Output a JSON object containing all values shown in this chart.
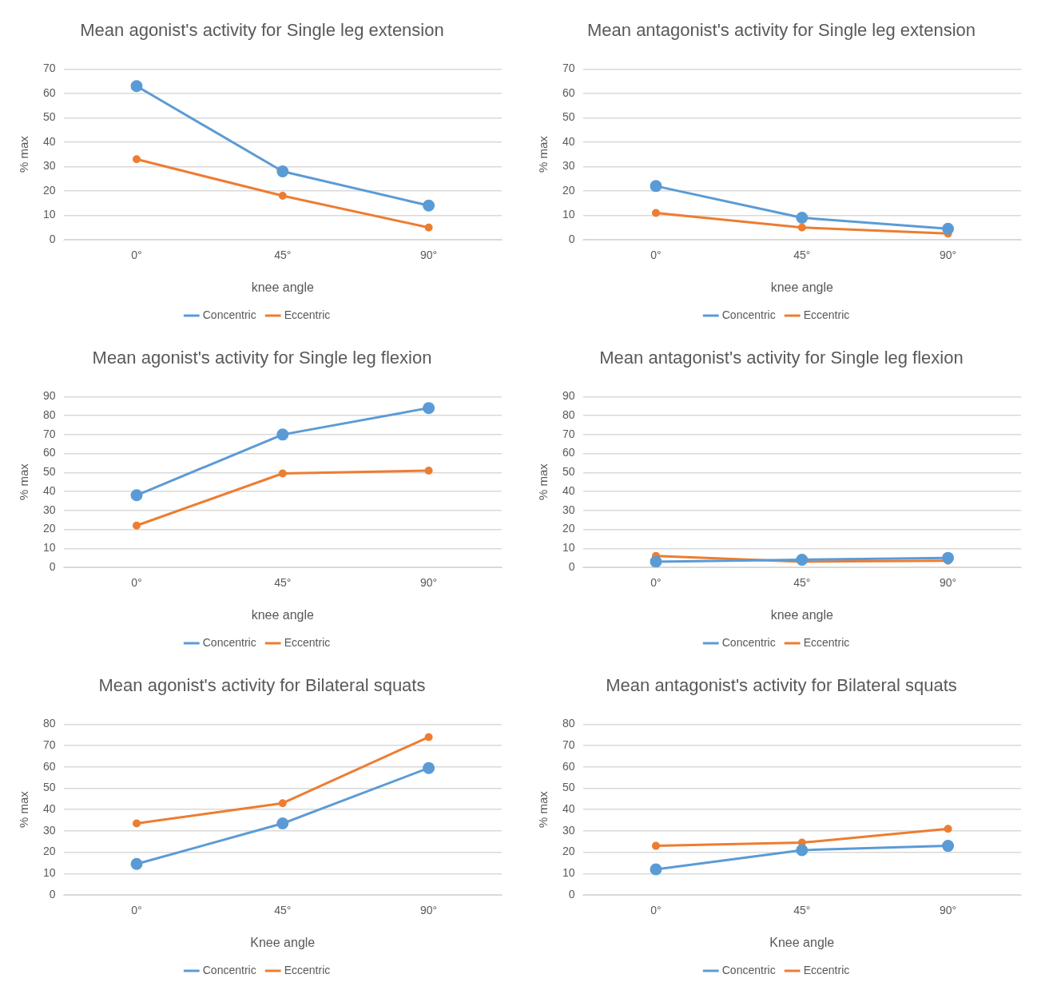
{
  "chart_data": [
    {
      "type": "line",
      "title": "Mean agonist's activity for Single leg extension",
      "xlabel": "knee angle",
      "ylabel": "% max",
      "categories": [
        "0°",
        "45°",
        "90°"
      ],
      "ylim": [
        0,
        70
      ],
      "yticks": [
        0,
        10,
        20,
        30,
        40,
        50,
        60,
        70
      ],
      "grid": "y",
      "legend": "bottom",
      "marker": "circle",
      "line_style": "solid",
      "series": [
        {
          "name": "Concentric",
          "color": "#5b9bd5",
          "values": [
            63,
            28,
            14
          ]
        },
        {
          "name": "Eccentric",
          "color": "#ed7d31",
          "values": [
            33,
            18,
            5
          ]
        }
      ]
    },
    {
      "type": "line",
      "title": "Mean antagonist's activity for Single leg extension",
      "xlabel": "knee angle",
      "ylabel": "% max",
      "categories": [
        "0°",
        "45°",
        "90°"
      ],
      "ylim": [
        0,
        70
      ],
      "yticks": [
        0,
        10,
        20,
        30,
        40,
        50,
        60,
        70
      ],
      "grid": "y",
      "legend": "bottom",
      "marker": "circle",
      "line_style": "solid",
      "series": [
        {
          "name": "Concentric",
          "color": "#5b9bd5",
          "values": [
            22,
            9,
            4.5
          ]
        },
        {
          "name": "Eccentric",
          "color": "#ed7d31",
          "values": [
            11,
            5,
            2.5
          ]
        }
      ]
    },
    {
      "type": "line",
      "title": "Mean agonist's activity  for Single leg flexion",
      "xlabel": "knee angle",
      "ylabel": "% max",
      "categories": [
        "0°",
        "45°",
        "90°"
      ],
      "ylim": [
        0,
        90
      ],
      "yticks": [
        0,
        10,
        20,
        30,
        40,
        50,
        60,
        70,
        80,
        90
      ],
      "grid": "y",
      "legend": "bottom",
      "marker": "circle",
      "line_style": "solid",
      "series": [
        {
          "name": "Concentric",
          "color": "#5b9bd5",
          "values": [
            38,
            70,
            84
          ]
        },
        {
          "name": "Eccentric",
          "color": "#ed7d31",
          "values": [
            22,
            49.5,
            51
          ]
        }
      ]
    },
    {
      "type": "line",
      "title": "Mean antagonist's activity for Single leg flexion",
      "xlabel": "knee angle",
      "ylabel": "% max",
      "categories": [
        "0°",
        "45°",
        "90°"
      ],
      "ylim": [
        0,
        90
      ],
      "yticks": [
        0,
        10,
        20,
        30,
        40,
        50,
        60,
        70,
        80,
        90
      ],
      "grid": "y",
      "legend": "bottom",
      "marker": "circle",
      "line_style": "solid",
      "series": [
        {
          "name": "Concentric",
          "color": "#5b9bd5",
          "values": [
            3,
            4,
            5
          ]
        },
        {
          "name": "Eccentric",
          "color": "#ed7d31",
          "values": [
            6,
            3,
            3.5
          ]
        }
      ]
    },
    {
      "type": "line",
      "title": "Mean agonist's activity for Bilateral squats",
      "xlabel": "Knee angle",
      "ylabel": "% max",
      "categories": [
        "0°",
        "45°",
        "90°"
      ],
      "ylim": [
        0,
        80
      ],
      "yticks": [
        0,
        10,
        20,
        30,
        40,
        50,
        60,
        70,
        80
      ],
      "grid": "y",
      "legend": "bottom",
      "marker": "circle",
      "line_style": "solid",
      "series": [
        {
          "name": "Concentric",
          "color": "#5b9bd5",
          "values": [
            14.5,
            33.5,
            59.5
          ]
        },
        {
          "name": "Eccentric",
          "color": "#ed7d31",
          "values": [
            33.5,
            43,
            74
          ]
        }
      ]
    },
    {
      "type": "line",
      "title": "Mean antagonist's activity for Bilateral squats",
      "xlabel": "Knee angle",
      "ylabel": "% max",
      "categories": [
        "0°",
        "45°",
        "90°"
      ],
      "ylim": [
        0,
        80
      ],
      "yticks": [
        0,
        10,
        20,
        30,
        40,
        50,
        60,
        70,
        80
      ],
      "grid": "y",
      "legend": "bottom",
      "marker": "circle",
      "line_style": "solid",
      "series": [
        {
          "name": "Concentric",
          "color": "#5b9bd5",
          "values": [
            12,
            21,
            23
          ]
        },
        {
          "name": "Eccentric",
          "color": "#ed7d31",
          "values": [
            23,
            24.5,
            31
          ]
        }
      ]
    }
  ]
}
